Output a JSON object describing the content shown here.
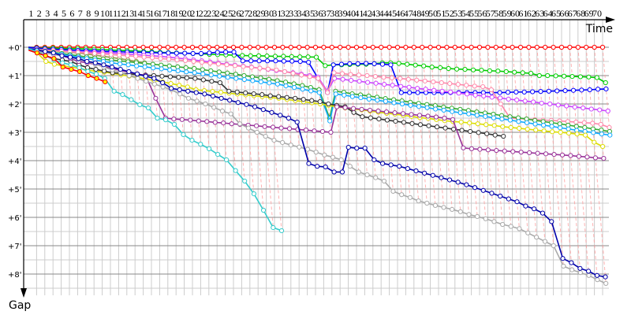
{
  "chart_data": {
    "type": "line",
    "xlabel": "Time",
    "ylabel": "Gap",
    "x_ticks": [
      "1",
      "2",
      "3",
      "4",
      "5",
      "6",
      "7",
      "8",
      "9",
      "10",
      "11",
      "12",
      "13",
      "14",
      "15",
      "16",
      "17",
      "18",
      "19",
      "20",
      "21",
      "22",
      "23",
      "24",
      "25",
      "26",
      "27",
      "28",
      "29",
      "30",
      "31",
      "32",
      "33",
      "34",
      "35",
      "36",
      "37",
      "38",
      "39",
      "40",
      "41",
      "42",
      "43",
      "44",
      "45",
      "46",
      "47",
      "48",
      "49",
      "50",
      "51",
      "52",
      "53",
      "54",
      "55",
      "56",
      "57",
      "58",
      "59",
      "60",
      "61",
      "62",
      "63",
      "64",
      "65",
      "66",
      "67",
      "68",
      "69",
      "70"
    ],
    "y_ticks": [
      {
        "value": 0,
        "label": "+0'"
      },
      {
        "value": 1,
        "label": "+1'"
      },
      {
        "value": 2,
        "label": "+2'"
      },
      {
        "value": 3,
        "label": "+3'"
      },
      {
        "value": 4,
        "label": "+4'"
      },
      {
        "value": 5,
        "label": "+5'"
      },
      {
        "value": 6,
        "label": "+6'"
      },
      {
        "value": 7,
        "label": "+7'"
      },
      {
        "value": 8,
        "label": "+8'"
      }
    ],
    "x_range_laps": [
      0,
      70
    ],
    "y_range_minutes": [
      0,
      8.5
    ],
    "y_inverted": true,
    "grid": true,
    "lap_connector_color": "#ff9999",
    "series": [
      {
        "color": "#ff0000",
        "fill": "#ffffff",
        "start_lap": 0,
        "values": [
          0,
          0,
          0,
          0,
          0,
          0,
          0,
          0,
          0,
          0,
          0,
          0,
          0,
          0,
          0,
          0,
          0,
          0,
          0,
          0,
          0,
          0,
          0,
          0,
          0,
          0,
          0,
          0,
          0,
          0,
          0,
          0,
          0,
          0,
          0,
          0,
          0,
          0,
          0,
          0,
          0,
          0,
          0,
          0,
          0,
          0,
          0,
          0,
          0,
          0,
          0,
          0,
          0,
          0,
          0,
          0,
          0,
          0,
          0,
          0,
          0,
          0,
          0,
          0,
          0,
          0,
          0,
          0,
          0,
          0,
          0
        ]
      },
      {
        "color": "#bbdd99",
        "fill": "#ffffff",
        "start_lap": 0,
        "values": [
          0.03,
          0.05,
          0.07,
          0.1,
          0.13,
          0.16,
          0.2,
          0.24,
          0.28,
          0.32,
          0.36,
          0.4,
          0.45,
          0.5
        ]
      },
      {
        "color": "#999955",
        "fill": "#ffffff",
        "start_lap": 0,
        "values": [
          0.05,
          0.08,
          0.1,
          0.13,
          0.15,
          0.18,
          0.2,
          0.24,
          0.28,
          0.32,
          0.36,
          0.4,
          0.45,
          0.5,
          0.55
        ]
      },
      {
        "color": "#00cc00",
        "fill": "#ffffff",
        "start_lap": 0,
        "values": [
          0,
          0.02,
          0.03,
          0.03,
          0.04,
          0.05,
          0.05,
          0.06,
          0.07,
          0.08,
          0.1,
          0.11,
          0.12,
          0.13,
          0.15,
          0.16,
          0.18,
          0.19,
          0.2,
          0.21,
          0.22,
          0.23,
          0.25,
          0.26,
          0.27,
          0.28,
          0.29,
          0.3,
          0.3,
          0.31,
          0.32,
          0.32,
          0.33,
          0.34,
          0.34,
          0.35,
          0.65,
          0.62,
          0.62,
          0.61,
          0.6,
          0.6,
          0.58,
          0.55,
          0.55,
          0.57,
          0.6,
          0.63,
          0.66,
          0.7,
          0.72,
          0.75,
          0.77,
          0.78,
          0.8,
          0.81,
          0.83,
          0.84,
          0.86,
          0.88,
          0.9,
          0.92,
          1.0,
          1.0,
          1.01,
          1.02,
          1.03,
          1.04,
          1.05,
          1.07,
          1.25
        ]
      },
      {
        "color": "#0000ff",
        "fill": "#ffffff",
        "start_lap": 0,
        "values": [
          0,
          0.03,
          0.05,
          0.07,
          0.08,
          0.1,
          0.11,
          0.12,
          0.13,
          0.14,
          0.15,
          0.16,
          0.17,
          0.18,
          0.18,
          0.19,
          0.2,
          0.2,
          0.21,
          0.21,
          0.22,
          0.22,
          0.2,
          0.18,
          0.17,
          0.17,
          0.48,
          0.48,
          0.48,
          0.48,
          0.48,
          0.49,
          0.49,
          0.5,
          0.53,
          1.1,
          1.6,
          0.62,
          0.6,
          0.58,
          0.58,
          0.57,
          0.58,
          0.6,
          0.62,
          1.6,
          1.6,
          1.6,
          1.6,
          1.6,
          1.6,
          1.6,
          1.6,
          1.6,
          1.6,
          1.6,
          1.6,
          1.6,
          1.59,
          1.58,
          1.58,
          1.57,
          1.56,
          1.55,
          1.54,
          1.53,
          1.52,
          1.51,
          1.5,
          1.48,
          1.47
        ]
      },
      {
        "color": "#cc44ff",
        "fill": "#ffffff",
        "start_lap": 0,
        "values": [
          0.05,
          0.08,
          0.1,
          0.12,
          0.13,
          0.15,
          0.16,
          0.17,
          0.18,
          0.19,
          0.2,
          0.22,
          0.24,
          0.26,
          0.28,
          0.3,
          0.32,
          0.35,
          0.38,
          0.41,
          0.45,
          0.48,
          0.52,
          0.56,
          0.6,
          0.63,
          0.67,
          0.7,
          0.74,
          0.78,
          0.82,
          0.86,
          0.9,
          0.95,
          1.0,
          1.05,
          1.55,
          1.1,
          1.13,
          1.17,
          1.2,
          1.24,
          1.27,
          1.31,
          1.34,
          1.38,
          1.41,
          1.45,
          1.48,
          1.52,
          1.55,
          1.58,
          1.62,
          1.65,
          1.69,
          1.72,
          1.76,
          1.79,
          1.83,
          1.86,
          1.9,
          1.93,
          1.97,
          2.0,
          2.04,
          2.07,
          2.11,
          2.14,
          2.18,
          2.21,
          2.25
        ]
      },
      {
        "color": "#ff88aa",
        "fill": "#ffffff",
        "start_lap": 0,
        "values": [
          0.05,
          0.08,
          0.1,
          0.12,
          0.14,
          0.16,
          0.18,
          0.2,
          0.22,
          0.24,
          0.26,
          0.28,
          0.3,
          0.32,
          0.35,
          0.37,
          0.4,
          0.42,
          0.45,
          0.47,
          0.5,
          0.53,
          0.56,
          0.59,
          0.62,
          0.65,
          0.68,
          0.71,
          0.74,
          0.77,
          0.8,
          0.86,
          0.92,
          0.98,
          1.04,
          1.1,
          1.6,
          0.9,
          0.93,
          0.96,
          0.98,
          1.0,
          1.03,
          1.06,
          1.08,
          1.1,
          1.13,
          1.16,
          1.19,
          1.22,
          1.25,
          1.28,
          1.31,
          1.34,
          1.37,
          1.39,
          1.5,
          2.0,
          2.5,
          2.52,
          2.53,
          2.55,
          2.57,
          2.58,
          2.6,
          2.62,
          2.64,
          2.66,
          2.68,
          2.72,
          2.83
        ]
      },
      {
        "color": "#33aa33",
        "fill": "#ffffff",
        "start_lap": 0,
        "values": [
          0.05,
          0.1,
          0.14,
          0.18,
          0.22,
          0.26,
          0.3,
          0.34,
          0.38,
          0.42,
          0.45,
          0.48,
          0.51,
          0.54,
          0.57,
          0.6,
          0.63,
          0.66,
          0.69,
          0.72,
          0.75,
          0.79,
          0.83,
          0.87,
          0.91,
          0.95,
          1.0,
          1.04,
          1.08,
          1.13,
          1.18,
          1.23,
          1.29,
          1.35,
          1.42,
          1.5,
          2.5,
          1.55,
          1.59,
          1.64,
          1.68,
          1.72,
          1.76,
          1.81,
          1.85,
          1.89,
          1.94,
          1.98,
          2.02,
          2.06,
          2.11,
          2.15,
          2.19,
          2.23,
          2.28,
          2.32,
          2.36,
          2.41,
          2.45,
          2.49,
          2.53,
          2.58,
          2.62,
          2.66,
          2.7,
          2.75,
          2.79,
          2.83,
          2.88,
          2.92,
          2.97
        ]
      },
      {
        "color": "#11aaff",
        "fill": "#ffffff",
        "start_lap": 0,
        "values": [
          0.05,
          0.1,
          0.15,
          0.2,
          0.25,
          0.3,
          0.35,
          0.4,
          0.45,
          0.5,
          0.55,
          0.59,
          0.62,
          0.66,
          0.69,
          0.73,
          0.76,
          0.8,
          0.83,
          0.87,
          0.9,
          0.94,
          0.98,
          1.02,
          1.06,
          1.1,
          1.14,
          1.18,
          1.22,
          1.26,
          1.3,
          1.36,
          1.42,
          1.48,
          1.54,
          1.6,
          2.6,
          1.65,
          1.69,
          1.74,
          1.78,
          1.83,
          1.87,
          1.91,
          1.96,
          2.0,
          2.05,
          2.09,
          2.13,
          2.18,
          2.22,
          2.27,
          2.31,
          2.35,
          2.4,
          2.44,
          2.49,
          2.53,
          2.57,
          2.62,
          2.66,
          2.71,
          2.75,
          2.79,
          2.84,
          2.88,
          2.93,
          2.97,
          3.01,
          3.06,
          3.1
        ]
      },
      {
        "color": "#dddd00",
        "fill": "#ffffff",
        "start_lap": 0,
        "values": [
          0.1,
          0.2,
          0.5,
          0.6,
          0.65,
          0.7,
          0.75,
          0.8,
          0.85,
          0.88,
          0.92,
          0.97,
          1.02,
          1.07,
          1.12,
          1.17,
          1.22,
          1.28,
          1.34,
          1.4,
          1.5,
          1.53,
          1.56,
          1.59,
          1.62,
          1.65,
          1.68,
          1.71,
          1.74,
          1.77,
          1.8,
          1.84,
          1.88,
          1.92,
          1.96,
          2.0,
          2.05,
          2.1,
          2.14,
          2.18,
          2.21,
          2.25,
          2.29,
          2.33,
          2.36,
          2.4,
          2.44,
          2.48,
          2.51,
          2.55,
          2.59,
          2.62,
          2.64,
          2.67,
          2.7,
          2.73,
          2.76,
          2.8,
          2.83,
          2.86,
          2.89,
          2.92,
          2.95,
          2.98,
          3.0,
          3.03,
          3.06,
          3.1,
          3.35,
          3.5
        ]
      },
      {
        "color": "#333333",
        "fill": "#ffffff",
        "start_lap": 0,
        "values": [
          0.1,
          0.2,
          0.3,
          0.4,
          0.45,
          0.5,
          0.62,
          0.72,
          0.78,
          0.84,
          0.9,
          0.92,
          0.94,
          0.96,
          0.98,
          1.0,
          1.02,
          1.04,
          1.06,
          1.08,
          1.1,
          1.15,
          1.2,
          1.25,
          1.55,
          1.58,
          1.61,
          1.64,
          1.67,
          1.71,
          1.74,
          1.77,
          1.8,
          1.84,
          1.88,
          1.92,
          2.0,
          2.05,
          2.1,
          2.3,
          2.45,
          2.49,
          2.53,
          2.57,
          2.61,
          2.65,
          2.69,
          2.73,
          2.77,
          2.81,
          2.85,
          2.89,
          2.93,
          2.97,
          3.01,
          3.05,
          3.1,
          3.14
        ]
      },
      {
        "color": "#993399",
        "fill": "#ffffff",
        "start_lap": 0,
        "values": [
          0.1,
          0.15,
          0.2,
          0.25,
          0.3,
          0.4,
          0.5,
          0.55,
          0.6,
          0.68,
          0.75,
          0.82,
          0.88,
          0.94,
          1.0,
          1.8,
          2.5,
          2.53,
          2.55,
          2.57,
          2.6,
          2.62,
          2.65,
          2.67,
          2.7,
          2.72,
          2.75,
          2.77,
          2.8,
          2.82,
          2.85,
          2.87,
          2.9,
          2.92,
          2.95,
          2.97,
          3.0,
          2.1,
          2.13,
          2.16,
          2.19,
          2.22,
          2.25,
          2.28,
          2.31,
          2.34,
          2.37,
          2.4,
          2.43,
          2.46,
          2.5,
          2.55,
          3.55,
          3.58,
          3.6,
          3.62,
          3.64,
          3.66,
          3.68,
          3.7,
          3.72,
          3.74,
          3.76,
          3.78,
          3.8,
          3.82,
          3.85,
          3.87,
          3.9,
          3.92
        ]
      },
      {
        "color": "#aaaaaa",
        "fill": "#ffffff",
        "start_lap": 0,
        "values": [
          0.1,
          0.15,
          0.2,
          0.25,
          0.3,
          0.35,
          0.42,
          0.5,
          0.6,
          0.7,
          0.8,
          0.9,
          1.0,
          1.1,
          1.2,
          1.3,
          1.4,
          1.5,
          1.65,
          1.8,
          1.9,
          2.0,
          2.12,
          2.25,
          2.35,
          2.7,
          2.85,
          3.0,
          3.14,
          3.28,
          3.36,
          3.45,
          3.52,
          3.6,
          3.7,
          3.8,
          3.88,
          3.97,
          4.2,
          4.4,
          4.5,
          4.6,
          4.72,
          5.08,
          5.2,
          5.3,
          5.42,
          5.5,
          5.58,
          5.65,
          5.72,
          5.8,
          5.9,
          5.97,
          6.05,
          6.15,
          6.25,
          6.32,
          6.4,
          6.55,
          6.7,
          6.85,
          7.0,
          7.72,
          7.85,
          7.95,
          8.05,
          8.2,
          8.33
        ]
      },
      {
        "color": "#0000aa",
        "fill": "#ffffff",
        "start_lap": 0,
        "values": [
          0.05,
          0.1,
          0.15,
          0.2,
          0.3,
          0.35,
          0.4,
          0.5,
          0.55,
          0.62,
          0.7,
          0.78,
          0.86,
          0.94,
          1.02,
          1.1,
          1.25,
          1.45,
          1.5,
          1.55,
          1.6,
          1.65,
          1.72,
          1.8,
          1.87,
          1.95,
          2.02,
          2.1,
          2.2,
          2.3,
          2.4,
          2.5,
          2.64,
          4.1,
          4.2,
          4.22,
          4.4,
          4.4,
          3.53,
          3.56,
          3.56,
          3.97,
          4.1,
          4.15,
          4.2,
          4.28,
          4.36,
          4.44,
          4.52,
          4.6,
          4.68,
          4.76,
          4.85,
          4.95,
          5.05,
          5.15,
          5.25,
          5.35,
          5.45,
          5.6,
          5.7,
          5.85,
          6.15,
          7.45,
          7.6,
          7.8,
          7.9,
          8.05,
          8.1
        ]
      },
      {
        "color": "#33cccc",
        "fill": "#ffffff",
        "start_lap": 0,
        "values": [
          0.05,
          0.15,
          0.3,
          0.45,
          0.55,
          0.62,
          0.72,
          0.85,
          0.95,
          1.1,
          1.55,
          1.67,
          1.85,
          2.03,
          2.14,
          2.5,
          2.56,
          2.72,
          3.08,
          3.28,
          3.42,
          3.58,
          3.78,
          3.97,
          4.35,
          4.72,
          5.17,
          5.75,
          6.36,
          6.47
        ]
      },
      {
        "color": "#ff0000",
        "fill": "#ffff00",
        "start_lap": 0,
        "values": [
          0.1,
          0.2,
          0.3,
          0.4,
          0.7,
          0.78,
          0.86,
          1.0,
          1.1,
          1.22
        ]
      }
    ]
  }
}
